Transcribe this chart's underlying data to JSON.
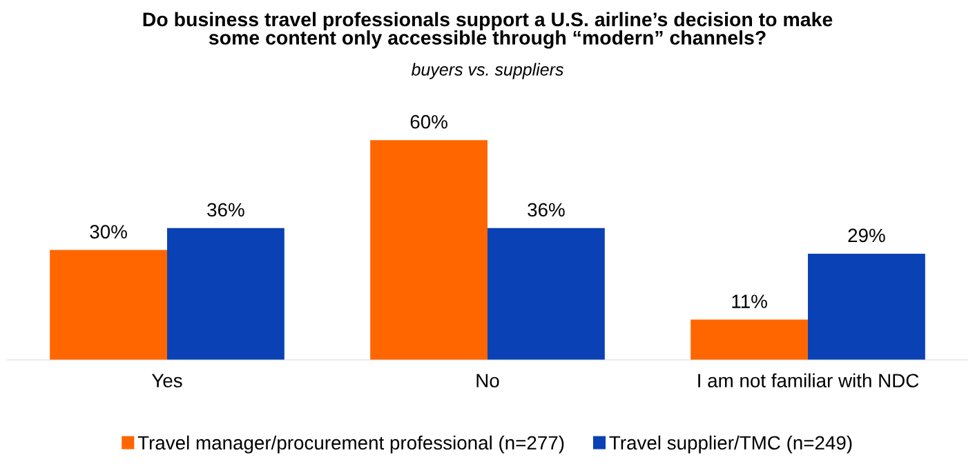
{
  "chart_data": {
    "type": "bar",
    "title": "Do business travel professionals support a U.S. airline’s decision to make\nsome content only accessible through “modern” channels?",
    "subtitle": "buyers vs. suppliers",
    "categories": [
      "Yes",
      "No",
      "I am not familiar with NDC"
    ],
    "series": [
      {
        "name": "Travel manager/procurement professional (n=277)",
        "color": "#ff6600",
        "values": [
          30,
          60,
          11
        ],
        "value_labels": [
          "30%",
          "60%",
          "11%"
        ]
      },
      {
        "name": "Travel supplier/TMC (n=249)",
        "color": "#0a41b4",
        "values": [
          36,
          36,
          29
        ],
        "value_labels": [
          "36%",
          "36%",
          "29%"
        ]
      }
    ],
    "legend": "bottom"
  }
}
